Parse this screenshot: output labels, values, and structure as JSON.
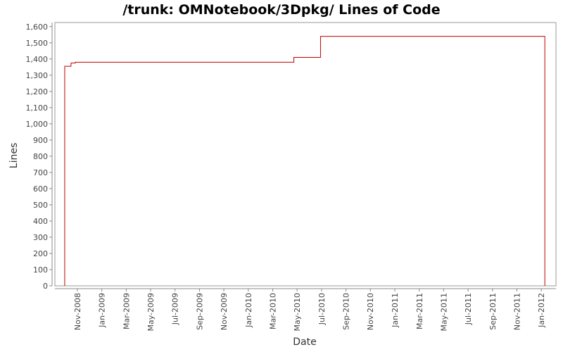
{
  "chart_data": {
    "type": "step",
    "title": "/trunk: OMNotebook/3Dpkg/ Lines of Code",
    "xlabel": "Date",
    "ylabel": "Lines",
    "series": [
      {
        "color": "#c00000",
        "x": [
          2008.747,
          2008.747,
          2008.79,
          2008.82,
          2010.311,
          2010.493,
          2012.024
        ],
        "values": [
          0,
          1355,
          1375,
          1380,
          1410,
          1540,
          0
        ]
      }
    ],
    "xlim": [
      2008.68,
      2012.1
    ],
    "xticks": [
      {
        "value": 2008.833,
        "label": "Nov-2008"
      },
      {
        "value": 2009.0,
        "label": "Jan-2009"
      },
      {
        "value": 2009.167,
        "label": "Mar-2009"
      },
      {
        "value": 2009.333,
        "label": "May-2009"
      },
      {
        "value": 2009.5,
        "label": "Jul-2009"
      },
      {
        "value": 2009.667,
        "label": "Sep-2009"
      },
      {
        "value": 2009.833,
        "label": "Nov-2009"
      },
      {
        "value": 2010.0,
        "label": "Jan-2010"
      },
      {
        "value": 2010.167,
        "label": "Mar-2010"
      },
      {
        "value": 2010.333,
        "label": "May-2010"
      },
      {
        "value": 2010.5,
        "label": "Jul-2010"
      },
      {
        "value": 2010.667,
        "label": "Sep-2010"
      },
      {
        "value": 2010.833,
        "label": "Nov-2010"
      },
      {
        "value": 2011.0,
        "label": "Jan-2011"
      },
      {
        "value": 2011.167,
        "label": "Mar-2011"
      },
      {
        "value": 2011.333,
        "label": "May-2011"
      },
      {
        "value": 2011.5,
        "label": "Jul-2011"
      },
      {
        "value": 2011.667,
        "label": "Sep-2011"
      },
      {
        "value": 2011.833,
        "label": "Nov-2011"
      },
      {
        "value": 2012.0,
        "label": "Jan-2012"
      }
    ],
    "ylim": [
      0,
      1625
    ],
    "yticks": [
      0,
      100,
      200,
      300,
      400,
      500,
      600,
      700,
      800,
      900,
      {
        "value": 1000,
        "label": "1,000"
      },
      {
        "value": 1100,
        "label": "1,100"
      },
      {
        "value": 1200,
        "label": "1,200"
      },
      {
        "value": 1300,
        "label": "1,300"
      },
      {
        "value": 1400,
        "label": "1,400"
      },
      {
        "value": 1500,
        "label": "1,500"
      },
      {
        "value": 1600,
        "label": "1,600"
      }
    ]
  }
}
